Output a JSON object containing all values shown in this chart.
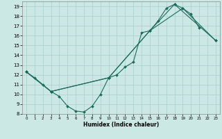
{
  "title": "",
  "xlabel": "Humidex (Indice chaleur)",
  "bg_color": "#cce8e4",
  "grid_color": "#aacfcb",
  "line_color": "#1a6b5a",
  "xlim": [
    -0.5,
    23.5
  ],
  "ylim": [
    8,
    19.5
  ],
  "yticks": [
    8,
    9,
    10,
    11,
    12,
    13,
    14,
    15,
    16,
    17,
    18,
    19
  ],
  "xticks": [
    0,
    1,
    2,
    3,
    4,
    5,
    6,
    7,
    8,
    9,
    10,
    11,
    12,
    13,
    14,
    15,
    16,
    17,
    18,
    19,
    20,
    21,
    22,
    23
  ],
  "line1_x": [
    0,
    1,
    2,
    3,
    4,
    5,
    6,
    7,
    8,
    9,
    10,
    11,
    12,
    13,
    14,
    15,
    16,
    17,
    18,
    19,
    20,
    21
  ],
  "line1_y": [
    12.3,
    11.7,
    11.0,
    10.3,
    9.8,
    8.8,
    8.3,
    8.2,
    8.8,
    10.0,
    11.7,
    12.0,
    12.8,
    13.3,
    16.3,
    16.5,
    17.5,
    18.8,
    19.2,
    18.8,
    18.2,
    16.8
  ],
  "line2_x": [
    0,
    3,
    10,
    15,
    18,
    23
  ],
  "line2_y": [
    12.3,
    10.3,
    11.7,
    16.5,
    19.2,
    15.5
  ],
  "line3_x": [
    0,
    3,
    10,
    15,
    19,
    23
  ],
  "line3_y": [
    12.3,
    10.3,
    11.7,
    16.5,
    18.8,
    15.5
  ]
}
